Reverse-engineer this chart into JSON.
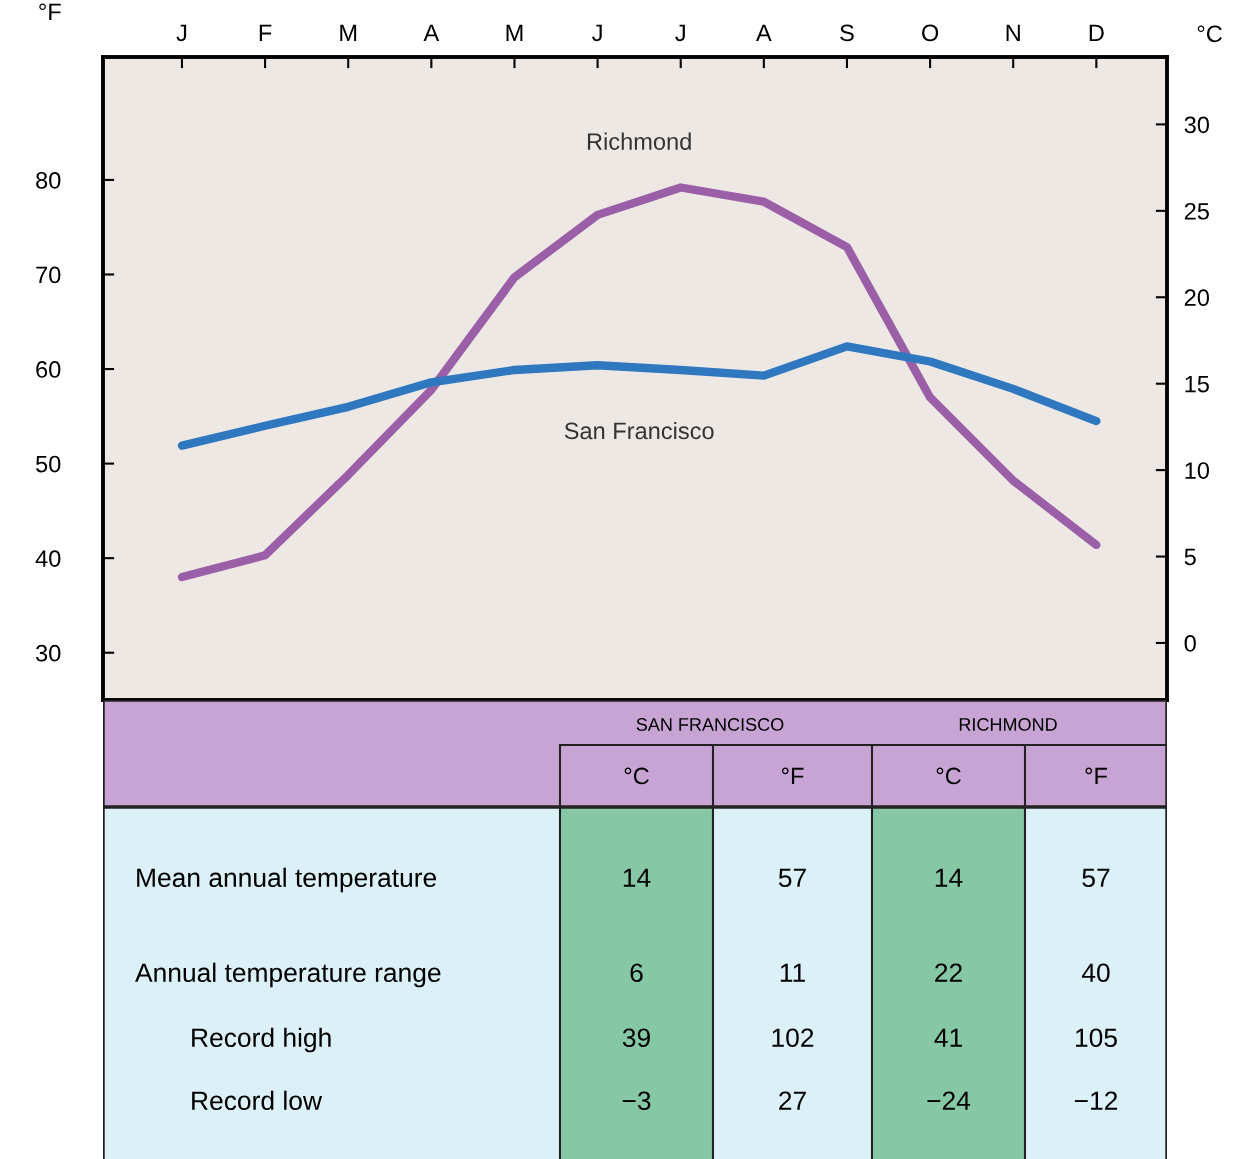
{
  "chart_data": {
    "type": "line",
    "ylabel": "°F",
    "y2label": "°C",
    "categories": [
      "J",
      "F",
      "M",
      "A",
      "M",
      "J",
      "J",
      "A",
      "S",
      "O",
      "N",
      "D"
    ],
    "series": [
      {
        "name": "Richmond",
        "color": "#9b5fa8",
        "values": [
          38.0,
          40.3,
          48.8,
          57.8,
          69.7,
          76.3,
          79.2,
          77.7,
          72.9,
          57.0,
          48.2,
          41.4
        ]
      },
      {
        "name": "San Francisco",
        "color": "#2f78c0",
        "values": [
          51.9,
          54.0,
          56.0,
          58.6,
          59.9,
          60.4,
          59.9,
          59.3,
          62.4,
          60.8,
          57.9,
          54.5
        ]
      }
    ],
    "ylim": [
      25,
      93
    ],
    "yticks": [
      30,
      40,
      50,
      60,
      70,
      80
    ],
    "y2lim": [
      -3.3,
      33.9
    ],
    "y2ticks": [
      0,
      5,
      10,
      15,
      20,
      25,
      30
    ],
    "grid": false,
    "legend": false,
    "marker": "none",
    "line_style": "solid",
    "annotations": [
      "SAN FRANCISCO",
      "RICHMOND",
      "°C",
      "°F",
      "°C",
      "°F",
      "Mean annual temperature",
      "14",
      "57",
      "14",
      "57",
      "Annual temperature range",
      "6",
      "11",
      "22",
      "40",
      "Record high",
      "39",
      "102",
      "41",
      "105",
      "Record low",
      "−3",
      "27",
      "−24",
      "−12"
    ]
  }
}
